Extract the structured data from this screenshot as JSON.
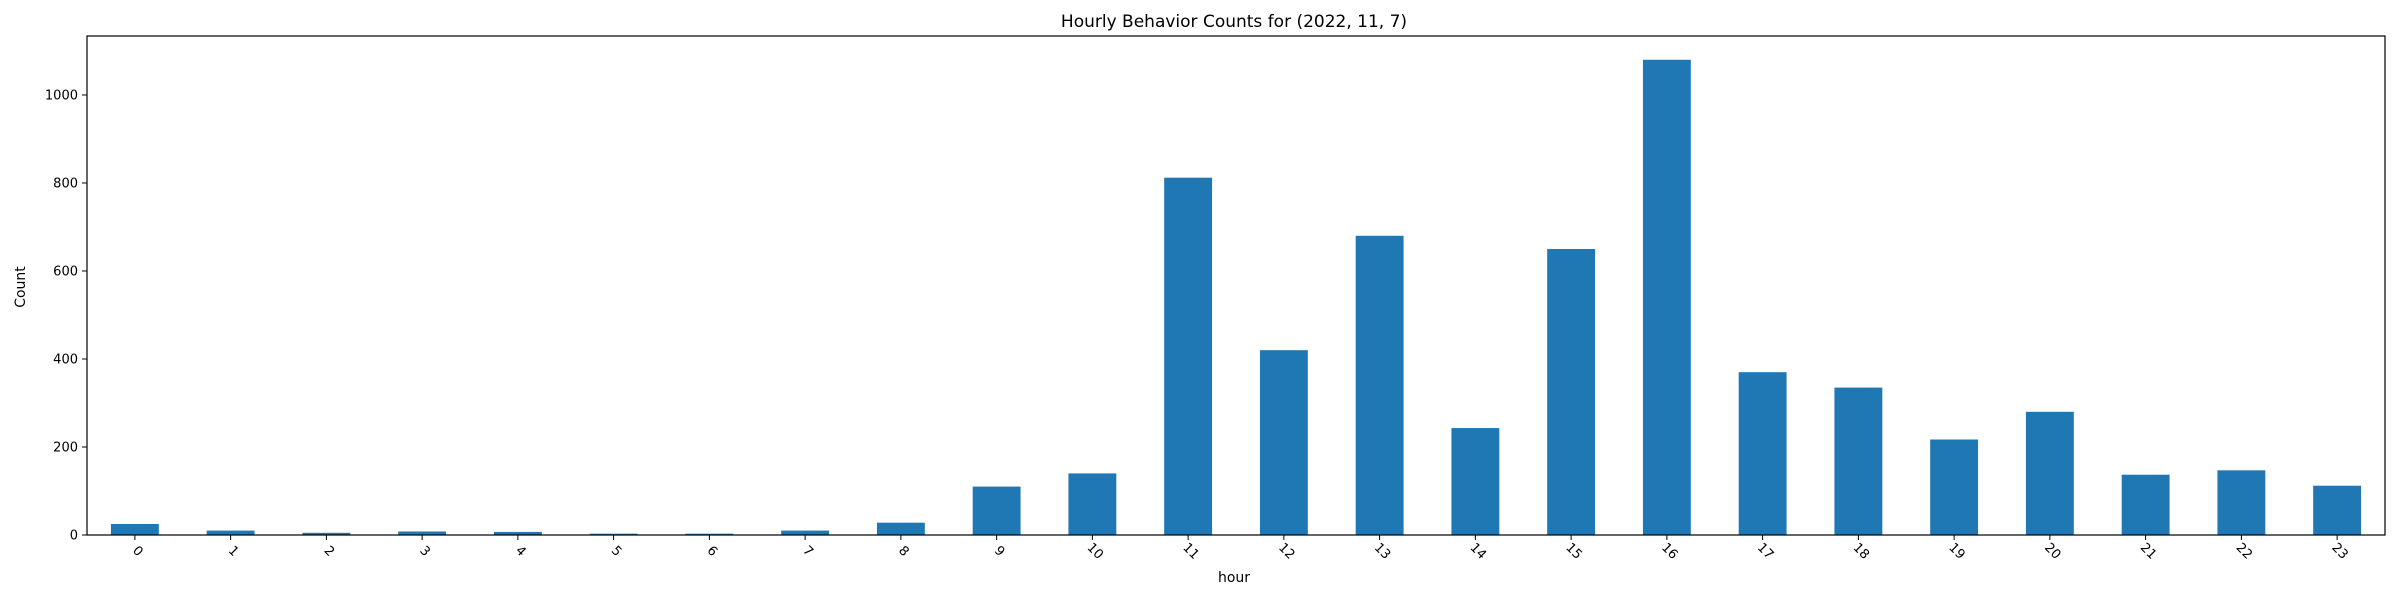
{
  "chart_data": {
    "type": "bar",
    "title": "Hourly Behavior Counts for (2022, 11, 7)",
    "xlabel": "hour",
    "ylabel": "Count",
    "categories": [
      "0",
      "1",
      "2",
      "3",
      "4",
      "5",
      "6",
      "7",
      "8",
      "9",
      "10",
      "11",
      "12",
      "13",
      "14",
      "15",
      "16",
      "17",
      "18",
      "19",
      "20",
      "21",
      "22",
      "23"
    ],
    "values": [
      25,
      10,
      5,
      8,
      7,
      3,
      3,
      10,
      28,
      110,
      140,
      812,
      420,
      680,
      243,
      650,
      1080,
      370,
      335,
      217,
      280,
      137,
      147,
      112
    ],
    "yticks": [
      "0",
      "200",
      "400",
      "600",
      "800",
      "1000"
    ],
    "ylim": [
      0,
      1134
    ],
    "grid": false,
    "legend": "none",
    "color": "#1f77b4",
    "xtick_rotation": 45
  }
}
